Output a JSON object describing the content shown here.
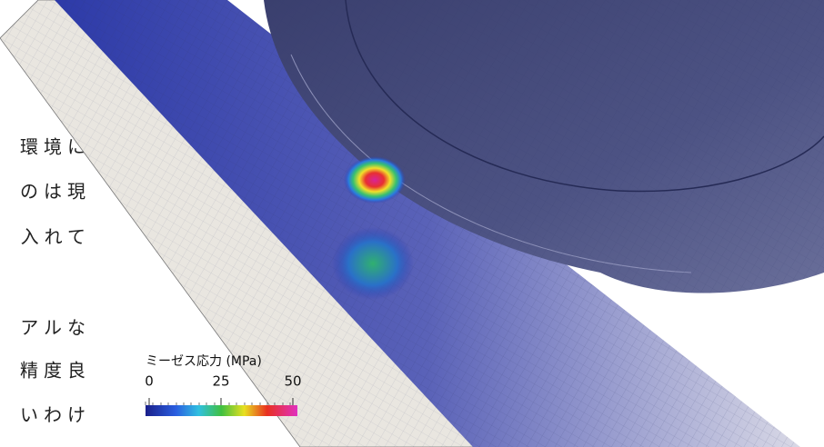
{
  "text_fragments": [
    "環境に",
    "のは現",
    "入れて",
    "アルな",
    "精度良",
    "いわけ"
  ],
  "colorbar": {
    "title": "ミーゼス応力 (MPa)",
    "range": [
      0,
      50
    ],
    "ticks": [
      0,
      25,
      50
    ]
  }
}
